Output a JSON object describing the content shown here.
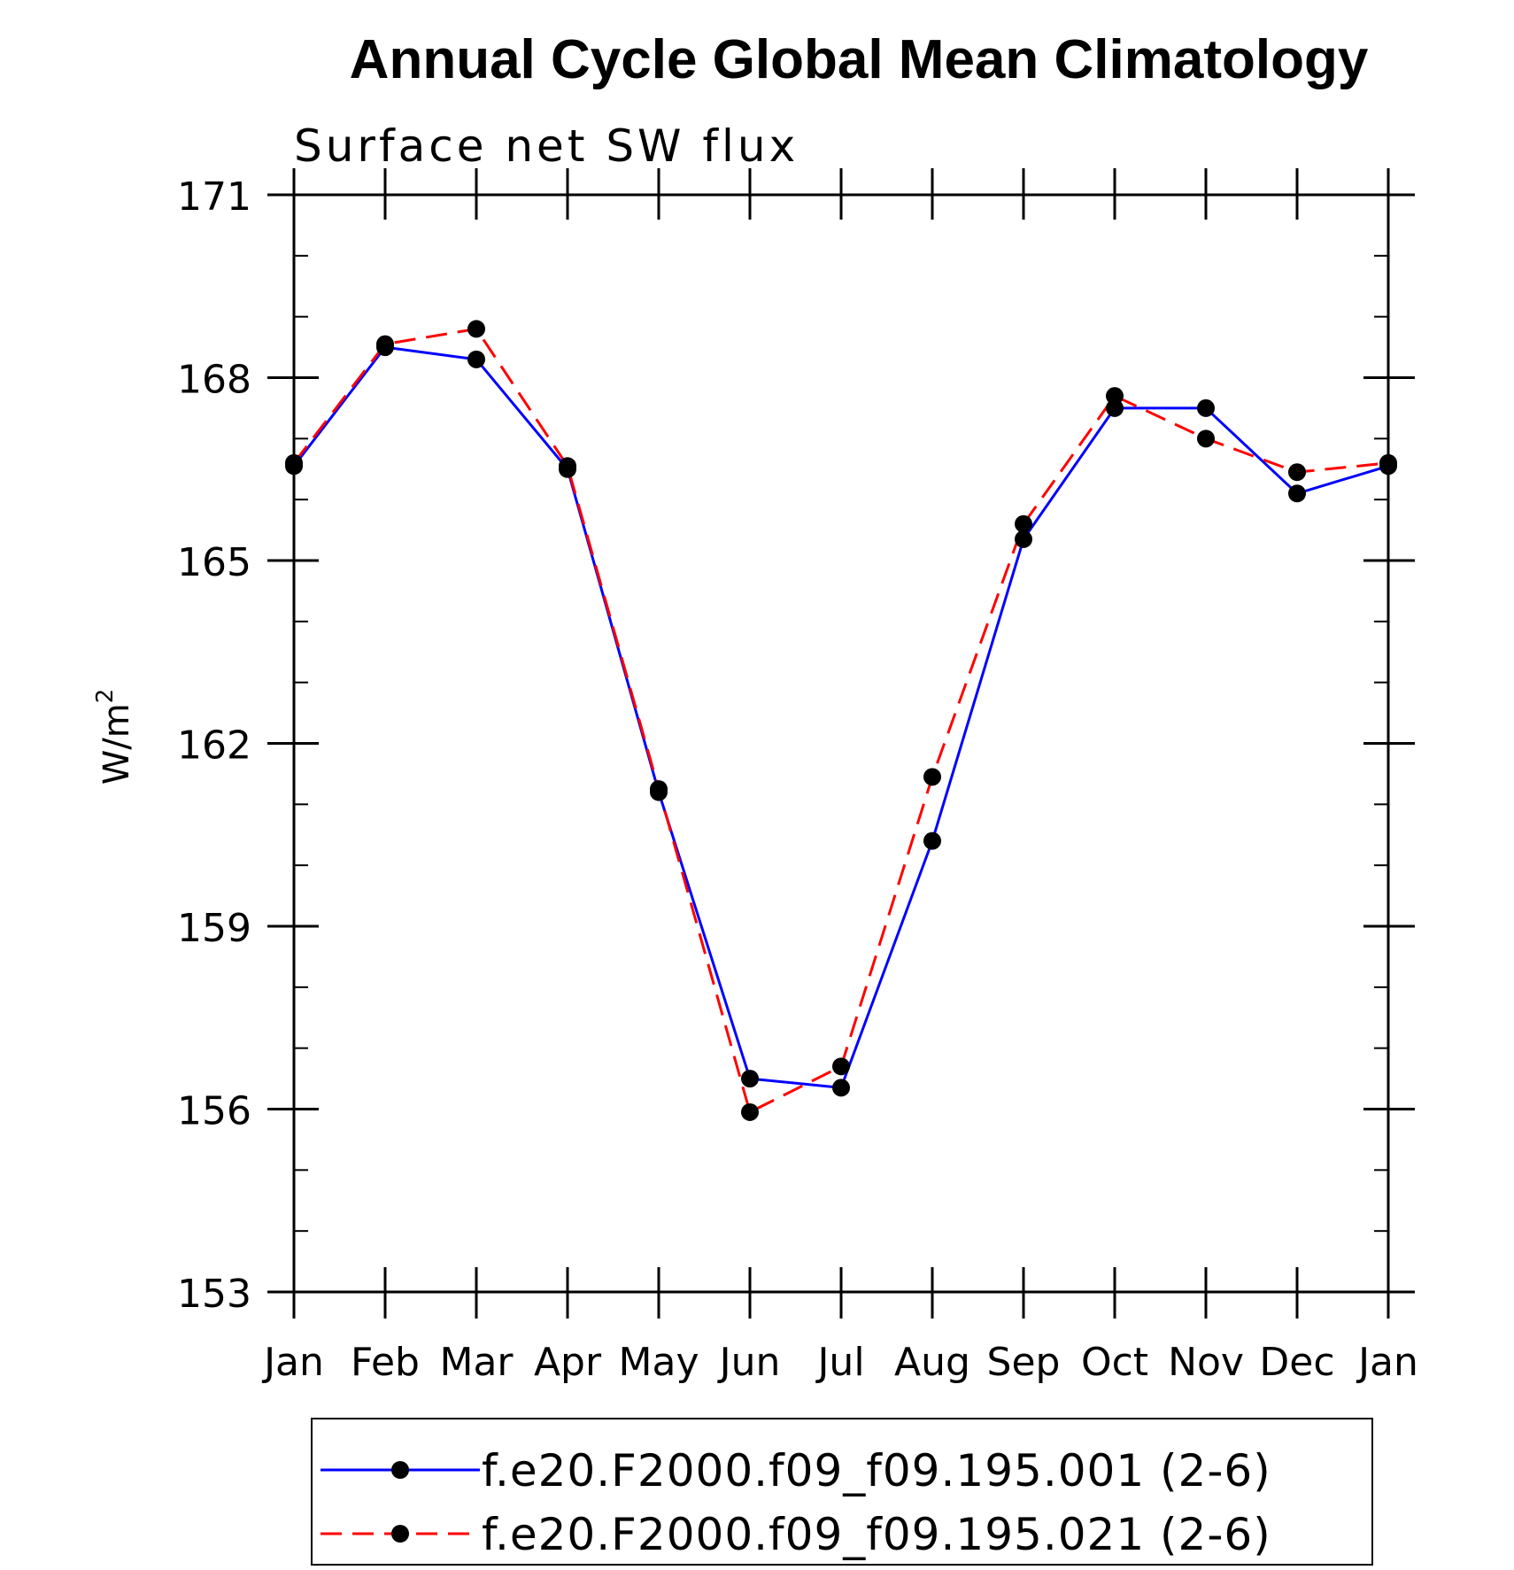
{
  "chart_data": {
    "type": "line",
    "title": "Annual Cycle Global Mean Climatology",
    "subtitle": "Surface net SW flux",
    "xlabel": "",
    "ylabel": "W/m",
    "ylabel_superscript": "2",
    "ylim": [
      153,
      171
    ],
    "yticks": [
      153,
      156,
      159,
      162,
      165,
      168,
      171
    ],
    "ytick_labels": [
      "153",
      "156",
      "159",
      "162",
      "165",
      "168",
      "171"
    ],
    "y_minor_step": 1,
    "categories": [
      "Jan",
      "Feb",
      "Mar",
      "Apr",
      "May",
      "Jun",
      "Jul",
      "Aug",
      "Sep",
      "Oct",
      "Nov",
      "Dec",
      "Jan"
    ],
    "series": [
      {
        "name": "f.e20.F2000.f09_f09.195.001 (2-6)",
        "color": "#0000ff",
        "dash": "solid",
        "values": [
          166.55,
          168.5,
          168.3,
          166.5,
          161.2,
          156.5,
          156.35,
          160.4,
          165.35,
          167.5,
          167.5,
          166.1,
          166.55
        ]
      },
      {
        "name": "f.e20.F2000.f09_f09.195.021 (2-6)",
        "color": "#ff0000",
        "dash": "dashed",
        "values": [
          166.6,
          168.55,
          168.8,
          166.55,
          161.25,
          155.95,
          156.7,
          161.45,
          165.6,
          167.7,
          167.0,
          166.45,
          166.6
        ]
      }
    ],
    "marker": "filled-circle",
    "marker_color": "#000000",
    "grid": false,
    "legend_position": "bottom"
  }
}
